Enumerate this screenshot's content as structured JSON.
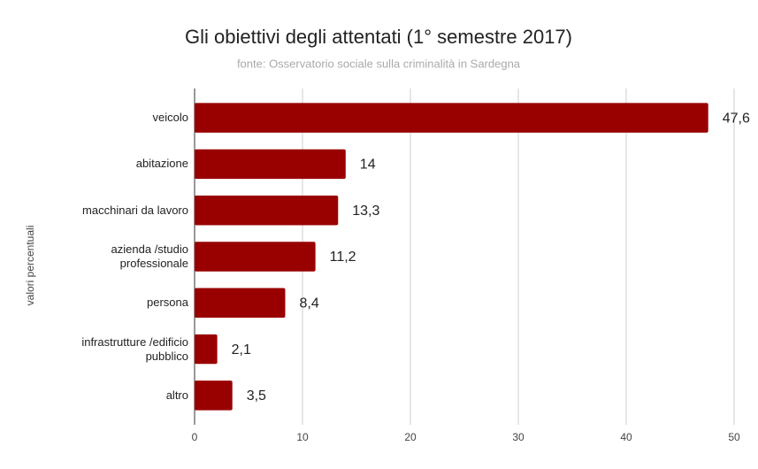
{
  "chart_data": {
    "type": "bar",
    "orientation": "horizontal",
    "title": "Gli obiettivi degli attentati (1° semestre 2017)",
    "subtitle": "fonte: Osservatorio sociale sulla criminalità in Sardegna",
    "y_label": "valori percentuali",
    "categories": [
      "veicolo",
      "abitazione",
      "macchinari da lavoro",
      "azienda /studio\nprofessionale",
      "persona",
      "infrastrutture /edificio\npubblico",
      "altro"
    ],
    "values": [
      47.6,
      14,
      13.3,
      11.2,
      8.4,
      2.1,
      3.5
    ],
    "value_labels": [
      "47,6",
      "14",
      "13,3",
      "11,2",
      "8,4",
      "2,1",
      "3,5"
    ],
    "color": "#990000",
    "xlim": [
      0,
      50
    ],
    "xticks": [
      0,
      10,
      20,
      30,
      40,
      50
    ],
    "grid": true
  }
}
